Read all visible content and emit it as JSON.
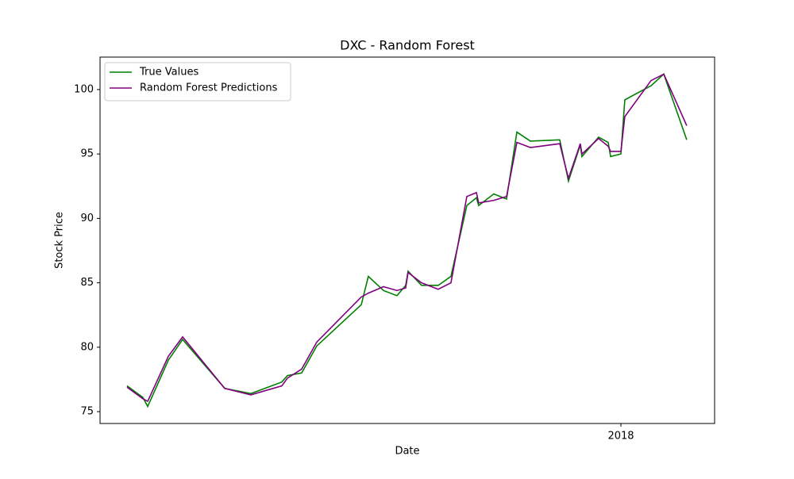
{
  "chart_data": {
    "type": "line",
    "title": "DXC - Random Forest",
    "xlabel": "Date",
    "ylabel": "Stock Price",
    "x": [
      2017.6705,
      2017.6811,
      2017.6843,
      2017.6981,
      2017.7076,
      2017.7357,
      2017.7531,
      2017.7738,
      2017.7775,
      2017.787,
      2017.7971,
      2017.8268,
      2017.8315,
      2017.8416,
      2017.8506,
      2017.8564,
      2017.858,
      2017.867,
      2017.8781,
      2017.8866,
      2017.8972,
      2017.9036,
      2017.9051,
      2017.9152,
      2017.9237,
      2017.9306,
      2017.9396,
      2017.9592,
      2017.965,
      2017.9729,
      2017.974,
      2017.9851,
      2017.9915,
      2017.9931,
      2018.0,
      2018.0026,
      2018.0201,
      2018.0286,
      2018.0439
    ],
    "series": [
      {
        "name": "True Values",
        "color": "#008000",
        "values": [
          77.0,
          76.1,
          75.4,
          79.0,
          80.6,
          76.8,
          76.4,
          77.3,
          77.8,
          78.0,
          80.1,
          83.3,
          85.5,
          84.4,
          84.0,
          84.8,
          85.9,
          84.8,
          84.8,
          85.5,
          91.0,
          91.6,
          91.0,
          91.9,
          91.5,
          96.7,
          96.0,
          96.1,
          92.9,
          95.7,
          94.8,
          96.3,
          95.9,
          94.8,
          95.0,
          99.2,
          100.3,
          101.2,
          96.1
        ]
      },
      {
        "name": "Random Forest Predictions",
        "color": "#800080",
        "values": [
          76.9,
          76.0,
          75.8,
          79.3,
          80.8,
          76.8,
          76.3,
          77.0,
          77.6,
          78.3,
          80.4,
          83.9,
          84.2,
          84.7,
          84.4,
          84.6,
          85.8,
          85.0,
          84.5,
          85.0,
          91.7,
          92.0,
          91.2,
          91.4,
          91.7,
          95.9,
          95.5,
          95.8,
          93.1,
          95.8,
          95.0,
          96.2,
          95.6,
          95.2,
          95.2,
          97.9,
          100.7,
          101.2,
          97.2
        ]
      }
    ],
    "xlim": [
      2017.6525,
      2018.0625
    ],
    "xticks": [
      2018
    ],
    "ylim": [
      74.08,
      102.52
    ],
    "yticks": [
      75,
      80,
      85,
      90,
      95,
      100
    ],
    "legend": "upper left"
  }
}
